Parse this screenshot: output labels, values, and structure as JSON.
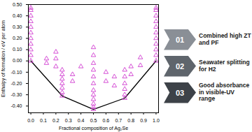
{
  "chart_data": {
    "type": "scatter",
    "x_label": "Fractional composition of Ag₂Se",
    "y_label": "Enthalpy of formation / eV per atom",
    "x": [
      0,
      0,
      0,
      0,
      0,
      0,
      0,
      0,
      0,
      0,
      0,
      1,
      1,
      1,
      1,
      1,
      1,
      1,
      1,
      1,
      1,
      1,
      0.125,
      0.125,
      0.2,
      0.2,
      0.2,
      0.25,
      0.25,
      0.25,
      0.25,
      0.25,
      0.25,
      0.25,
      0.333,
      0.333,
      0.4,
      0.5,
      0.5,
      0.5,
      0.5,
      0.5,
      0.5,
      0.5,
      0.5,
      0.5,
      0.5,
      0.5,
      0.5,
      0.6,
      0.6,
      0.667,
      0.667,
      0.75,
      0.75,
      0.75,
      0.75,
      0.75,
      0.75,
      0.8,
      0.8,
      0.875,
      0.875
    ],
    "values": [
      0,
      0.05,
      0.1,
      0.15,
      0.2,
      0.25,
      0.3,
      0.35,
      0.4,
      0.45,
      0.47,
      0,
      0.05,
      0.1,
      0.15,
      0.2,
      0.25,
      0.3,
      0.35,
      0.4,
      0.45,
      0.47,
      0.02,
      -0.02,
      0.08,
      0.02,
      -0.05,
      -0.08,
      -0.12,
      -0.16,
      -0.2,
      -0.24,
      -0.28,
      -0.31,
      -0.12,
      -0.18,
      -0.05,
      0.12,
      0.05,
      -0.02,
      -0.08,
      -0.14,
      -0.2,
      -0.26,
      -0.3,
      -0.34,
      -0.38,
      -0.41,
      -0.43,
      -0.1,
      -0.18,
      -0.14,
      -0.22,
      -0.08,
      -0.14,
      -0.2,
      -0.25,
      -0.3,
      -0.33,
      -0.05,
      -0.12,
      0.03,
      -0.04
    ],
    "color": "#d03cd0",
    "marker": "triangle",
    "line": {
      "x": [
        0,
        0.25,
        0.5,
        0.75,
        1
      ],
      "values": [
        0,
        -0.31,
        -0.43,
        -0.33,
        0
      ],
      "color": "#000000",
      "type": "line"
    },
    "xlim": [
      -0.02,
      1.02
    ],
    "xticks": [
      {
        "value": 0,
        "label": "0.0"
      },
      {
        "value": 0.1,
        "label": "0.1"
      },
      {
        "value": 0.2,
        "label": "0.2"
      },
      {
        "value": 0.3,
        "label": "0.3"
      },
      {
        "value": 0.4,
        "label": "0.4"
      },
      {
        "value": 0.5,
        "label": "0.5"
      },
      {
        "value": 0.6,
        "label": "0.6"
      },
      {
        "value": 0.7,
        "label": "0.7"
      },
      {
        "value": 0.8,
        "label": "0.8"
      },
      {
        "value": 0.9,
        "label": "0.9"
      },
      {
        "value": 1,
        "label": "1.0"
      }
    ],
    "ylim": [
      -0.46,
      0.5
    ],
    "yticks": [
      {
        "value": -0.4,
        "label": "-0.40"
      },
      {
        "value": -0.3,
        "label": "-0.30"
      },
      {
        "value": -0.2,
        "label": "-0.20"
      },
      {
        "value": -0.1,
        "label": "-0.10"
      },
      {
        "value": 0,
        "label": "0.00"
      },
      {
        "value": 0.1,
        "label": "0.10"
      },
      {
        "value": 0.2,
        "label": "0.20"
      },
      {
        "value": 0.3,
        "label": "0.30"
      },
      {
        "value": 0.4,
        "label": "0.40"
      },
      {
        "value": 0.5,
        "label": "0.50"
      }
    ],
    "grid": false,
    "annotations": [
      {
        "number": "01",
        "text": "Combined high ZT and PF"
      },
      {
        "number": "02",
        "text": "Seawater splitting for H2"
      },
      {
        "number": "03",
        "text": "Good absorbance in visible-UV range"
      }
    ]
  }
}
